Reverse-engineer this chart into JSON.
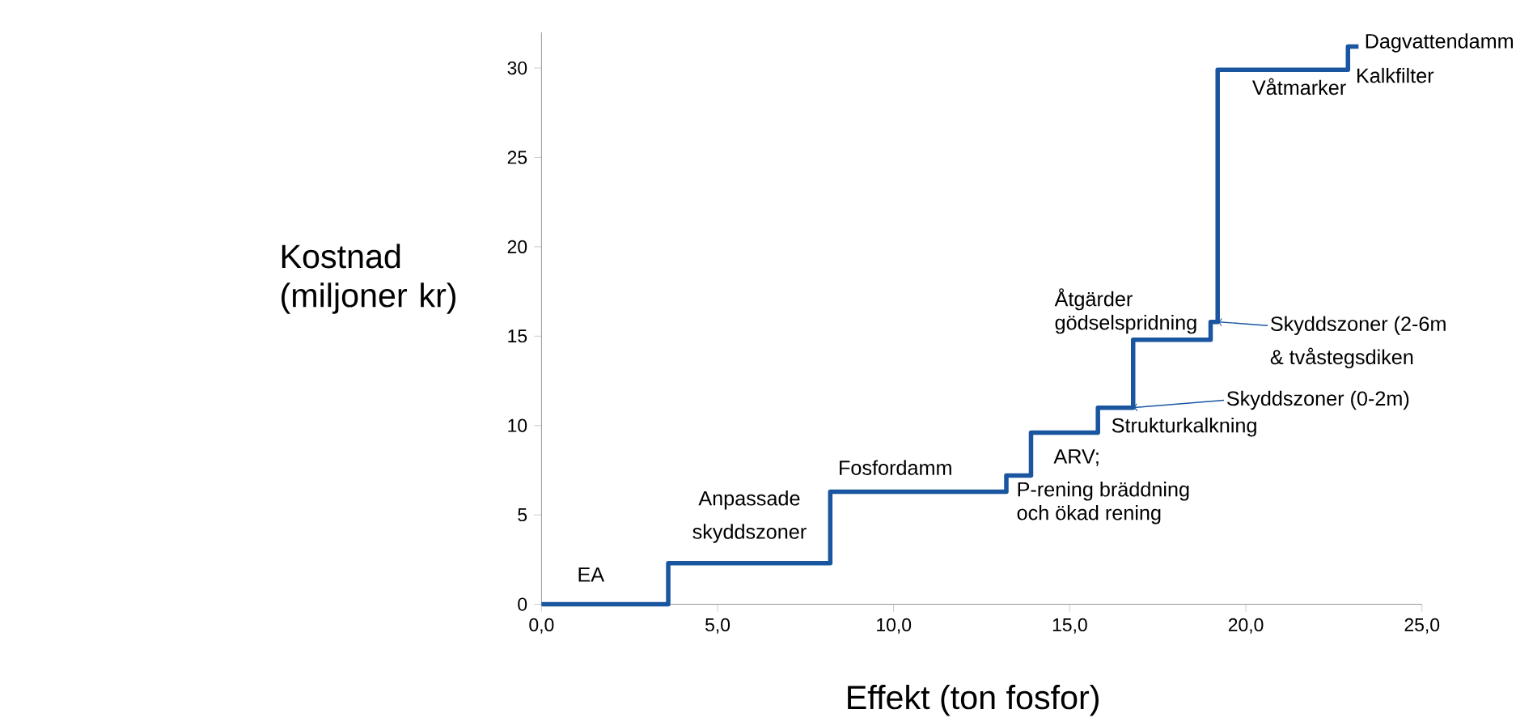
{
  "chart_data": {
    "type": "step",
    "xlabel": "Effekt (ton fosfor)",
    "ylabel": "Kostnad (miljoner kr)",
    "x": [
      0,
      3.6,
      8.2,
      13.2,
      13.9,
      15.8,
      16.8,
      19.0,
      19.2,
      22.9,
      23.2
    ],
    "values": [
      0,
      2.3,
      6.3,
      7.2,
      9.6,
      11.0,
      14.8,
      15.8,
      29.9,
      31.2,
      31.2
    ],
    "color": "#1a56a0",
    "xlim": [
      0,
      25
    ],
    "xticks": [
      {
        "value": 0,
        "label": "0,0"
      },
      {
        "value": 5,
        "label": "5,0"
      },
      {
        "value": 10,
        "label": "10,0"
      },
      {
        "value": 15,
        "label": "15,0"
      },
      {
        "value": 20,
        "label": "20,0"
      },
      {
        "value": 25,
        "label": "25,0"
      }
    ],
    "ylim": [
      0,
      32
    ],
    "yticks": [
      0,
      5,
      10,
      15,
      20,
      25,
      30
    ],
    "grid": false,
    "annotations": [
      {
        "text": "EA",
        "x": 1.4,
        "y": 0
      },
      {
        "text": "Anpassade",
        "x": 5.8,
        "y": 2.3
      },
      {
        "text": "skyddszoner",
        "x": 5.8,
        "y": 2.3
      },
      {
        "text": "Fosfordamm",
        "x": 10.1,
        "y": 6.3
      },
      {
        "text": "ARV;",
        "x": 13.9,
        "y": 9.6
      },
      {
        "text": "P-rening bräddning",
        "x": 13.9,
        "y": 9.6
      },
      "och ökad rening",
      {
        "text": "Strukturkalkning",
        "x": 16.8,
        "y": 11.0
      },
      "Åtgärder",
      {
        "text": "gödselspridning",
        "x": 17.9,
        "y": 14.8
      },
      {
        "text": "Skyddszoner (0-2m)",
        "x": 16.8,
        "y": 11.0
      },
      {
        "text": "Skyddszoner (2-6m",
        "x": 19.2,
        "y": 15.8
      },
      {
        "text": "& tvåstegsdiken",
        "x": 19.2,
        "y": 15.8
      },
      {
        "text": "Våtmarker",
        "x": 21.2,
        "y": 29.9
      },
      {
        "text": "Kalkfilter",
        "x": 22.9,
        "y": 29.9
      },
      {
        "text": "Dagvattendamm",
        "x": 23.2,
        "y": 31.2
      }
    ]
  }
}
